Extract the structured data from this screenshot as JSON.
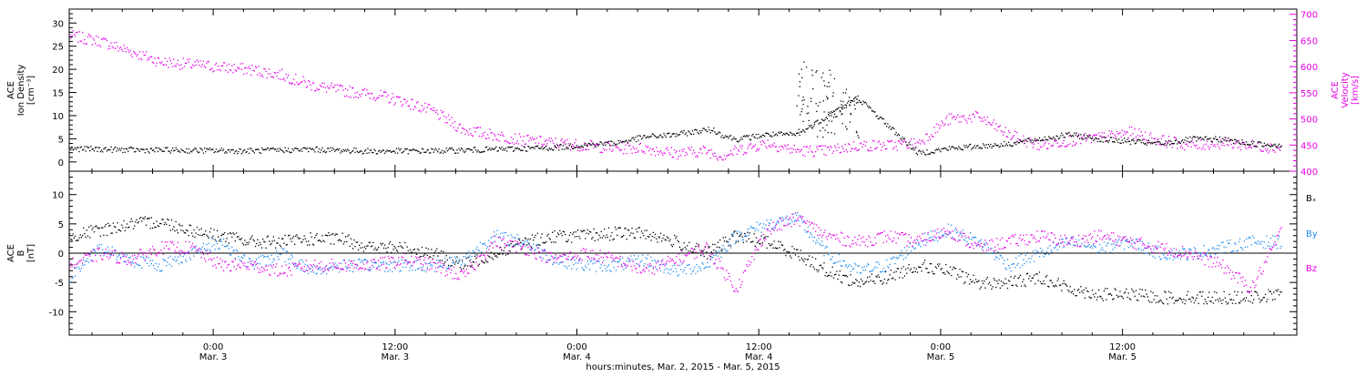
{
  "colors": {
    "axis": "#000000",
    "density": "#000000",
    "velocity": "#e600e6",
    "bx": "#000000",
    "by": "#1e8cf0",
    "bz": "#e600e6"
  },
  "chart_data": [
    {
      "type": "scatter",
      "panel": "top",
      "ylabel_left": [
        "ACE",
        "Ion Density",
        "[cm⁻³]"
      ],
      "ylabel_right": [
        "ACE",
        "Velocity",
        "[km/s]"
      ],
      "ylim_left": [
        -2,
        33
      ],
      "ylim_right": [
        400,
        710
      ],
      "yticks_left": [
        0,
        5,
        10,
        15,
        20,
        25,
        30
      ],
      "yticks_right": [
        400,
        450,
        500,
        550,
        600,
        650,
        700
      ],
      "series": [
        {
          "axis": "left",
          "x": [
            0,
            4,
            8,
            12,
            16,
            20,
            24,
            28,
            32,
            34,
            36,
            38,
            40,
            41,
            41.5,
            42,
            42.5,
            43,
            44,
            46,
            48,
            49,
            50,
            51,
            52,
            54,
            56,
            58,
            60,
            62,
            64,
            66,
            68,
            70,
            72,
            74,
            76,
            78,
            80
          ],
          "y": [
            3,
            2.7,
            2.6,
            2.5,
            2.8,
            2.4,
            2.5,
            2.8,
            3.2,
            3.8,
            4.2,
            5.5,
            6,
            6.5,
            6.8,
            7,
            7,
            6,
            5,
            6,
            6,
            8,
            10,
            12,
            14,
            8,
            2,
            3,
            3.5,
            4,
            5,
            6,
            5,
            4.5,
            4,
            5,
            5,
            4,
            3.8
          ]
        },
        {
          "axis": "right",
          "x": [
            0,
            2,
            4,
            6,
            8,
            10,
            12,
            14,
            16,
            18,
            20,
            22,
            24,
            26,
            28,
            30,
            32,
            34,
            36,
            38,
            40,
            42,
            43,
            44,
            46,
            48,
            50,
            52,
            54,
            56,
            58,
            60,
            62,
            64,
            66,
            68,
            70,
            72,
            74,
            76,
            78,
            80
          ],
          "y": [
            660,
            650,
            630,
            610,
            605,
            600,
            595,
            585,
            565,
            555,
            548,
            535,
            515,
            480,
            470,
            460,
            455,
            450,
            445,
            445,
            435,
            440,
            430,
            440,
            455,
            440,
            440,
            450,
            450,
            455,
            500,
            505,
            470,
            450,
            460,
            465,
            475,
            460,
            450,
            455,
            450,
            445
          ]
        }
      ],
      "spikes": [
        {
          "x": 48.5,
          "y": 23
        },
        {
          "x": 49.5,
          "y": 20
        },
        {
          "x": 50.5,
          "y": 20
        },
        {
          "x": 51.5,
          "y": 16
        }
      ]
    },
    {
      "type": "scatter",
      "panel": "bottom",
      "ylabel": [
        "ACE",
        "B",
        "[nT]"
      ],
      "ylim": [
        -14,
        14
      ],
      "yticks": [
        -10,
        -5,
        0,
        5,
        10
      ],
      "legend": [
        "Bₓ",
        "By",
        "Bz"
      ],
      "legend_placement": "right",
      "series": [
        {
          "name": "Bₓ",
          "x": [
            0,
            2,
            4,
            6,
            8,
            10,
            12,
            14,
            16,
            18,
            20,
            22,
            24,
            26,
            28,
            30,
            32,
            34,
            36,
            38,
            40,
            42,
            44,
            46,
            48,
            50,
            52,
            54,
            56,
            58,
            60,
            62,
            64,
            66,
            68,
            70,
            72,
            74,
            76,
            78,
            80
          ],
          "y": [
            3,
            4,
            5,
            5.5,
            4,
            3,
            2,
            2,
            2.5,
            2.5,
            1,
            1,
            0,
            -2,
            0,
            2,
            3,
            3,
            3.5,
            3.5,
            2,
            0,
            3,
            2,
            0,
            -3,
            -5,
            -4,
            -2,
            -3,
            -5,
            -5,
            -4,
            -6,
            -7,
            -7,
            -7.5,
            -7.5,
            -7.5,
            -7.5,
            -7
          ]
        },
        {
          "name": "By",
          "x": [
            0,
            2,
            4,
            6,
            8,
            10,
            12,
            14,
            16,
            18,
            20,
            22,
            24,
            26,
            28,
            30,
            32,
            34,
            36,
            38,
            40,
            42,
            44,
            46,
            48,
            50,
            52,
            54,
            56,
            58,
            60,
            62,
            64,
            66,
            68,
            70,
            72,
            74,
            76,
            78,
            80
          ],
          "y": [
            -4,
            1,
            -1,
            -2,
            0,
            2,
            -2,
            0,
            -3,
            -2,
            -2,
            -2,
            -2,
            -1,
            3,
            2,
            -1,
            -2,
            -2,
            -1,
            -3,
            -2,
            3,
            5,
            6,
            0,
            -3,
            -2,
            2,
            4,
            2,
            -2,
            0,
            2,
            1,
            2,
            0,
            0,
            1,
            2,
            2
          ]
        },
        {
          "name": "Bz",
          "x": [
            0,
            2,
            4,
            6,
            8,
            10,
            12,
            14,
            16,
            18,
            20,
            22,
            24,
            26,
            28,
            30,
            32,
            34,
            36,
            38,
            40,
            42,
            44,
            46,
            48,
            50,
            52,
            54,
            56,
            58,
            60,
            62,
            64,
            66,
            68,
            70,
            72,
            74,
            76,
            78,
            80
          ],
          "y": [
            -2,
            0,
            -1,
            1,
            1,
            -2,
            -2,
            -3,
            -2,
            -2,
            -2,
            -1,
            -2,
            -4,
            2,
            1,
            -1,
            0,
            -1,
            -3,
            -1,
            1,
            -6,
            4,
            6,
            3,
            2,
            3,
            2,
            4,
            1,
            2,
            3,
            2,
            3,
            2,
            1,
            0,
            -2,
            -6,
            4
          ]
        }
      ],
      "xtick_labels": [
        {
          "time": "0:00",
          "date": "Mar. 3"
        },
        {
          "time": "12:00",
          "date": "Mar. 3"
        },
        {
          "time": "0:00",
          "date": "Mar. 4"
        },
        {
          "time": "12:00",
          "date": "Mar. 4"
        },
        {
          "time": "0:00",
          "date": "Mar. 5"
        },
        {
          "time": "12:00",
          "date": "Mar. 5"
        }
      ],
      "xlabel": "hours:minutes, Mar. 2, 2015 - Mar. 5, 2015"
    }
  ],
  "axis_info": {
    "x_start_hour": 14.5,
    "x_end_hour": 95.5,
    "xticks_hours": [
      24,
      36,
      48,
      60,
      72,
      84
    ]
  }
}
